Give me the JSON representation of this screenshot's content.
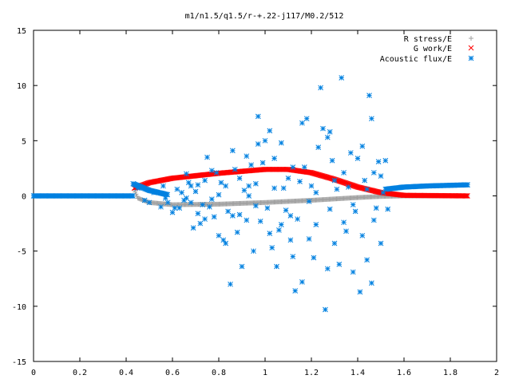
{
  "chart_data": {
    "type": "scatter",
    "title": "m1/n1.5/q1.5/r-+.22-j117/M0.2/512",
    "xlabel": "",
    "ylabel": "",
    "xlim": [
      0,
      2
    ],
    "ylim": [
      -15,
      15
    ],
    "x_ticks": [
      "0",
      "0.2",
      "0.4",
      "0.6",
      "0.8",
      "1",
      "1.2",
      "1.4",
      "1.6",
      "1.8",
      "2"
    ],
    "y_ticks": [
      "15",
      "10",
      "5",
      "0",
      "-5",
      "-10",
      "-15"
    ],
    "grid": false,
    "legend_position": "top-right",
    "series": [
      {
        "name": "R stress/E",
        "marker": "plus",
        "color": "#a0a0a0",
        "curve": [
          [
            0.435,
            0.55
          ],
          [
            0.45,
            -0.2
          ],
          [
            0.5,
            -0.6
          ],
          [
            0.6,
            -0.8
          ],
          [
            0.8,
            -0.75
          ],
          [
            1.0,
            -0.6
          ],
          [
            1.2,
            -0.4
          ],
          [
            1.4,
            -0.15
          ],
          [
            1.5,
            -0.05
          ],
          [
            1.6,
            0.0
          ],
          [
            1.875,
            0.0
          ]
        ]
      },
      {
        "name": "G work/E",
        "marker": "cross",
        "color": "#ff0000",
        "curve": [
          [
            0.435,
            0.7
          ],
          [
            0.5,
            1.2
          ],
          [
            0.6,
            1.6
          ],
          [
            0.8,
            2.05
          ],
          [
            1.0,
            2.4
          ],
          [
            1.1,
            2.4
          ],
          [
            1.2,
            2.1
          ],
          [
            1.3,
            1.5
          ],
          [
            1.4,
            0.8
          ],
          [
            1.5,
            0.3
          ],
          [
            1.6,
            0.05
          ],
          [
            1.875,
            0.0
          ]
        ]
      },
      {
        "name": "Acoustic flux/E",
        "marker": "star",
        "color": "#0080e0",
        "curve_left": [
          [
            0.0,
            0.0
          ],
          [
            0.43,
            0.0
          ]
        ],
        "curve_left_branch": [
          [
            0.43,
            1.1
          ],
          [
            0.5,
            0.5
          ],
          [
            0.58,
            0.1
          ]
        ],
        "curve_right": [
          [
            1.52,
            0.6
          ],
          [
            1.6,
            0.8
          ],
          [
            1.7,
            0.9
          ],
          [
            1.875,
            1.0
          ]
        ],
        "scatter": [
          [
            0.45,
            0.7
          ],
          [
            0.48,
            -0.4
          ],
          [
            0.5,
            -0.6
          ],
          [
            0.52,
            0.3
          ],
          [
            0.55,
            -1.0
          ],
          [
            0.56,
            0.9
          ],
          [
            0.57,
            -0.2
          ],
          [
            0.58,
            -0.6
          ],
          [
            0.6,
            -1.5
          ],
          [
            0.62,
            0.6
          ],
          [
            0.63,
            -1.1
          ],
          [
            0.64,
            0.3
          ],
          [
            0.65,
            -0.4
          ],
          [
            0.66,
            2.0
          ],
          [
            0.67,
            1.2
          ],
          [
            0.68,
            -0.6
          ],
          [
            0.69,
            -2.9
          ],
          [
            0.7,
            0.4
          ],
          [
            0.71,
            -1.6
          ],
          [
            0.72,
            -2.5
          ],
          [
            0.73,
            -0.8
          ],
          [
            0.74,
            1.4
          ],
          [
            0.75,
            3.5
          ],
          [
            0.76,
            -1.0
          ],
          [
            0.77,
            -0.3
          ],
          [
            0.78,
            -1.9
          ],
          [
            0.79,
            2.1
          ],
          [
            0.8,
            -3.6
          ],
          [
            0.81,
            1.2
          ],
          [
            0.82,
            -4.0
          ],
          [
            0.83,
            0.9
          ],
          [
            0.84,
            -1.4
          ],
          [
            0.85,
            -8.0
          ],
          [
            0.86,
            -1.8
          ],
          [
            0.87,
            2.4
          ],
          [
            0.88,
            -3.3
          ],
          [
            0.89,
            1.6
          ],
          [
            0.9,
            -6.4
          ],
          [
            0.91,
            0.5
          ],
          [
            0.92,
            -2.2
          ],
          [
            0.93,
            0.0
          ],
          [
            0.94,
            2.8
          ],
          [
            0.95,
            -5.0
          ],
          [
            0.96,
            1.1
          ],
          [
            0.97,
            4.7
          ],
          [
            0.98,
            -2.3
          ],
          [
            0.99,
            3.0
          ],
          [
            1.0,
            5.0
          ],
          [
            1.01,
            -1.1
          ],
          [
            1.02,
            5.9
          ],
          [
            1.03,
            -4.7
          ],
          [
            1.04,
            0.7
          ],
          [
            1.05,
            -6.4
          ],
          [
            1.06,
            -3.1
          ],
          [
            1.07,
            4.8
          ],
          [
            1.08,
            0.7
          ],
          [
            1.09,
            -1.3
          ],
          [
            1.1,
            1.6
          ],
          [
            1.11,
            -4.0
          ],
          [
            1.12,
            2.6
          ],
          [
            1.13,
            -8.6
          ],
          [
            1.14,
            -2.1
          ],
          [
            1.15,
            1.3
          ],
          [
            1.16,
            -7.8
          ],
          [
            1.17,
            2.6
          ],
          [
            1.18,
            7.0
          ],
          [
            1.19,
            -3.9
          ],
          [
            1.2,
            0.9
          ],
          [
            1.21,
            -5.6
          ],
          [
            1.22,
            -2.6
          ],
          [
            1.23,
            4.4
          ],
          [
            1.24,
            9.8
          ],
          [
            1.25,
            6.1
          ],
          [
            1.26,
            -10.3
          ],
          [
            1.27,
            -6.6
          ],
          [
            1.28,
            -1.2
          ],
          [
            1.29,
            3.2
          ],
          [
            1.3,
            -4.3
          ],
          [
            1.31,
            0.6
          ],
          [
            1.32,
            -6.2
          ],
          [
            1.33,
            10.7
          ],
          [
            1.34,
            2.1
          ],
          [
            1.35,
            -3.2
          ],
          [
            1.36,
            0.8
          ],
          [
            1.37,
            3.9
          ],
          [
            1.38,
            -6.9
          ],
          [
            1.39,
            -1.4
          ],
          [
            1.4,
            3.4
          ],
          [
            1.41,
            -8.7
          ],
          [
            1.42,
            -3.6
          ],
          [
            1.43,
            1.4
          ],
          [
            1.44,
            -5.8
          ],
          [
            1.45,
            9.1
          ],
          [
            1.46,
            -7.9
          ],
          [
            1.47,
            2.1
          ],
          [
            1.48,
            -1.1
          ],
          [
            1.49,
            3.1
          ],
          [
            1.5,
            -4.3
          ],
          [
            1.51,
            0.3
          ],
          [
            1.52,
            3.2
          ],
          [
            1.53,
            -1.2
          ],
          [
            1.46,
            7.0
          ],
          [
            1.42,
            4.5
          ],
          [
            1.38,
            -0.8
          ],
          [
            1.28,
            5.8
          ],
          [
            1.19,
            -0.5
          ],
          [
            1.12,
            -5.5
          ],
          [
            1.07,
            -2.6
          ],
          [
            1.04,
            3.4
          ],
          [
            0.96,
            -0.9
          ],
          [
            0.92,
            3.6
          ],
          [
            0.89,
            -1.7
          ],
          [
            0.86,
            4.1
          ],
          [
            0.83,
            -4.3
          ],
          [
            0.8,
            0.1
          ],
          [
            0.77,
            2.3
          ],
          [
            0.74,
            -2.1
          ],
          [
            0.71,
            1.0
          ],
          [
            0.68,
            0.9
          ],
          [
            0.61,
            -1.1
          ],
          [
            0.66,
            -0.2
          ],
          [
            0.97,
            7.2
          ],
          [
            1.16,
            6.6
          ],
          [
            1.3,
            1.4
          ],
          [
            1.44,
            0.6
          ],
          [
            1.34,
            -2.4
          ],
          [
            1.22,
            0.3
          ],
          [
            1.11,
            -1.8
          ],
          [
            1.02,
            -3.4
          ],
          [
            0.93,
            0.9
          ],
          [
            1.47,
            -2.2
          ],
          [
            1.5,
            1.8
          ],
          [
            1.27,
            5.3
          ]
        ]
      }
    ]
  }
}
